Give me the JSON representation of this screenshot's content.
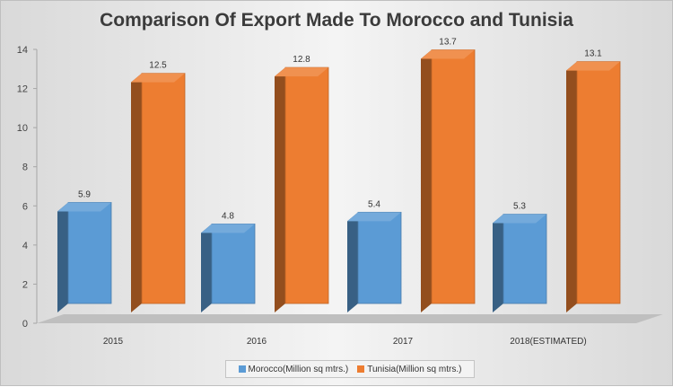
{
  "chart_data": {
    "type": "bar",
    "title": "Comparison Of Export Made To Morocco and Tunisia",
    "categories": [
      "2015",
      "2016",
      "2017",
      "2018(ESTIMATED)"
    ],
    "series": [
      {
        "name": "Morocco(Million sq mtrs.)",
        "values": [
          5.9,
          4.8,
          5.4,
          5.3
        ],
        "color": "#5b9bd5"
      },
      {
        "name": "Tunisia(Million sq mtrs.)",
        "values": [
          12.5,
          12.8,
          13.7,
          13.1
        ],
        "color": "#ed7d31"
      }
    ],
    "ylim": [
      0,
      14
    ],
    "yticks": [
      0,
      2,
      4,
      6,
      8,
      10,
      12,
      14
    ],
    "grid": false,
    "legend_position": "bottom",
    "style": "3d-clustered-column"
  }
}
